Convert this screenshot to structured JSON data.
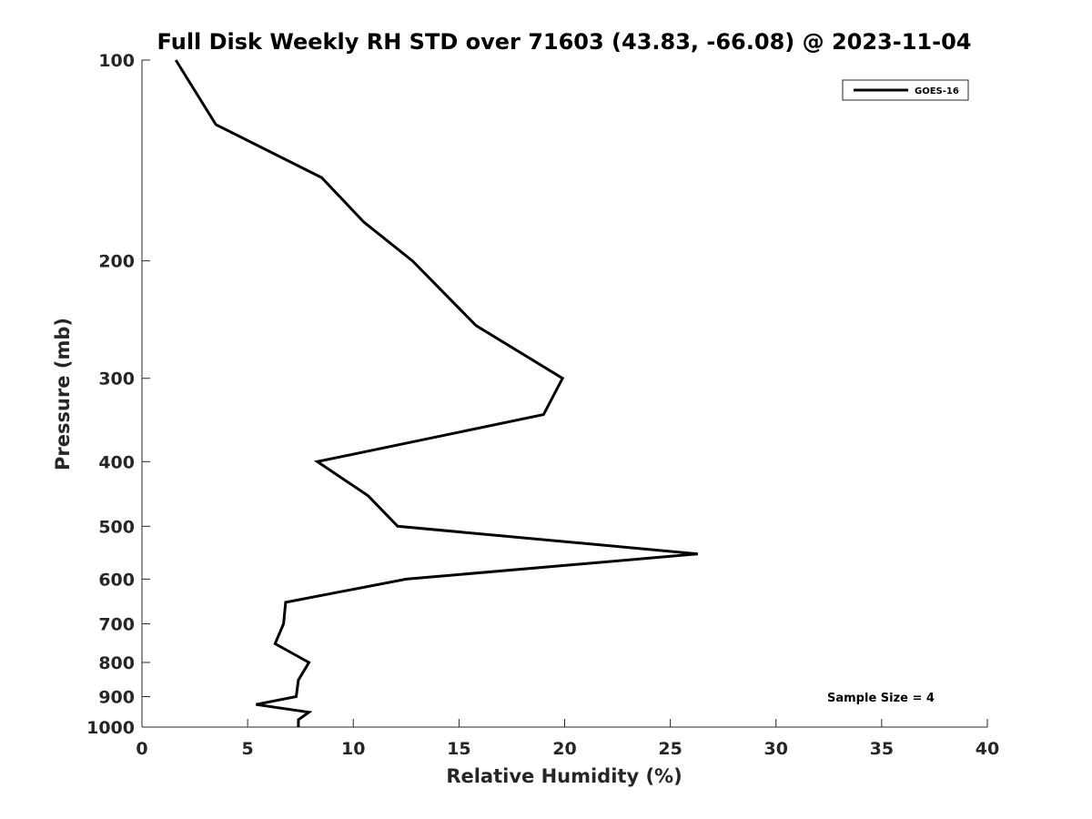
{
  "chart_data": {
    "type": "line",
    "title": "Full Disk Weekly RH STD over 71603 (43.83, -66.08) @ 2023-11-04",
    "xlabel": "Relative Humidity (%)",
    "ylabel": "Pressure (mb)",
    "xlim": [
      0,
      40
    ],
    "ylim": [
      1000,
      100
    ],
    "yscale": "log",
    "grid": false,
    "x_ticks": [
      0,
      5,
      10,
      15,
      20,
      25,
      30,
      35,
      40
    ],
    "x_tick_labels": [
      "0",
      "5",
      "10",
      "15",
      "20",
      "25",
      "30",
      "35",
      "40"
    ],
    "y_ticks": [
      100,
      200,
      300,
      400,
      500,
      600,
      700,
      800,
      900,
      1000
    ],
    "y_tick_labels": [
      "100",
      "200",
      "300",
      "400",
      "500",
      "600",
      "700",
      "800",
      "900",
      "1000"
    ],
    "legend": {
      "position": "top-right",
      "entries": [
        "GOES-16"
      ]
    },
    "annotation": "Sample Size = 4",
    "series": [
      {
        "name": "GOES-16",
        "color": "#000000",
        "points": [
          [
            1.6,
            100
          ],
          [
            3.5,
            125
          ],
          [
            8.5,
            150
          ],
          [
            10.5,
            175
          ],
          [
            12.8,
            200
          ],
          [
            15.8,
            250
          ],
          [
            19.9,
            300
          ],
          [
            19.0,
            340
          ],
          [
            8.3,
            400
          ],
          [
            10.7,
            450
          ],
          [
            12.1,
            500
          ],
          [
            26.3,
            550
          ],
          [
            12.5,
            600
          ],
          [
            6.8,
            650
          ],
          [
            6.7,
            700
          ],
          [
            6.3,
            750
          ],
          [
            7.9,
            800
          ],
          [
            7.4,
            850
          ],
          [
            7.3,
            900
          ],
          [
            5.4,
            925
          ],
          [
            7.9,
            950
          ],
          [
            7.4,
            975
          ],
          [
            7.4,
            1000
          ]
        ]
      }
    ],
    "series_points_note": "",
    "series_full": [
      {
        "name": "GOES-16",
        "points": [
          [
            1.6,
            100
          ],
          [
            3.5,
            125
          ],
          [
            8.5,
            150
          ],
          [
            10.5,
            175
          ],
          [
            12.8,
            200
          ],
          [
            15.8,
            250
          ],
          [
            19.9,
            300
          ],
          [
            19.0,
            340
          ],
          [
            8.3,
            400
          ],
          [
            10.7,
            450
          ],
          [
            12.1,
            500
          ],
          [
            26.3,
            550
          ],
          [
            12.5,
            600
          ],
          [
            6.8,
            650
          ],
          [
            6.7,
            700
          ],
          [
            6.3,
            750
          ],
          [
            7.9,
            800
          ],
          [
            7.4,
            850
          ],
          [
            7.3,
            900
          ],
          [
            5.4,
            925
          ],
          [
            7.9,
            950
          ],
          [
            7.4,
            975
          ],
          [
            7.4,
            1000
          ]
        ]
      }
    ]
  }
}
